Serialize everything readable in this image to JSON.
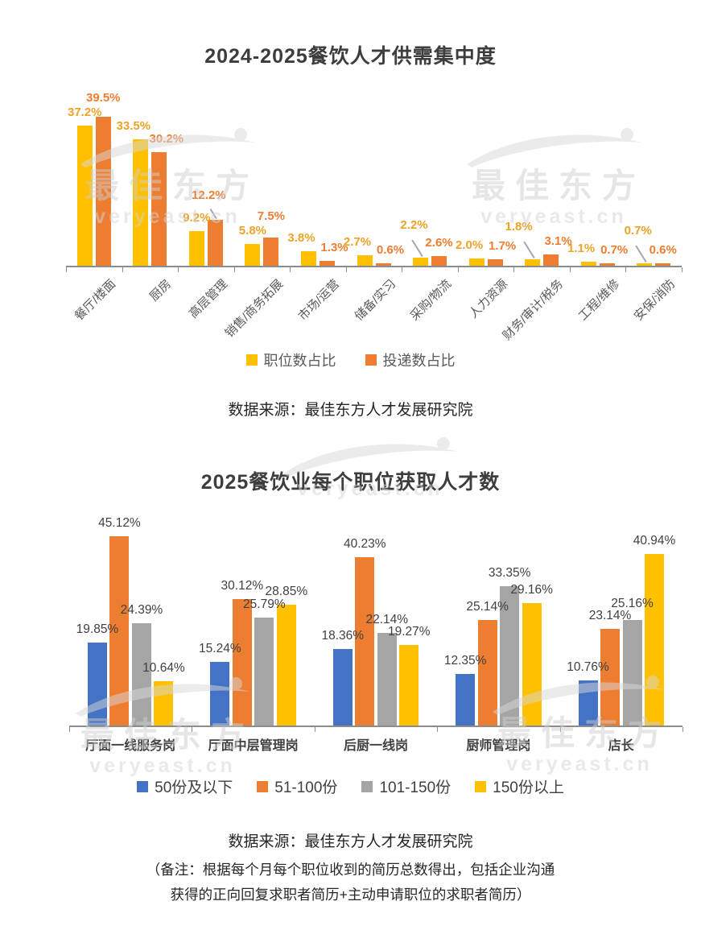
{
  "watermark": {
    "brand": "最佳东方",
    "url": "veryeast.cn"
  },
  "chart1": {
    "source": "数据来源：最佳东方人才发展研究院",
    "chart_data": {
      "type": "bar",
      "title": "2024-2025餐饮人才供需集中度",
      "categories": [
        "餐厅/楼面",
        "厨房",
        "高层管理",
        "销售/商务拓展",
        "市场/运营",
        "储备/实习",
        "采购/物流",
        "人力资源",
        "财务/审计/税务",
        "工程/维修",
        "安保/消防"
      ],
      "series": [
        {
          "name": "职位数占比",
          "color": "#FFC000",
          "label_color": "#EDA228",
          "values": [
            37.2,
            33.5,
            9.2,
            5.8,
            3.8,
            2.7,
            2.2,
            2.0,
            1.8,
            1.1,
            0.7
          ]
        },
        {
          "name": "投递数占比",
          "color": "#ED7D31",
          "label_color": "#ED7D31",
          "values": [
            39.5,
            30.2,
            12.2,
            7.5,
            1.3,
            0.6,
            2.6,
            1.7,
            3.1,
            0.7,
            0.6
          ]
        }
      ],
      "unit": "%",
      "value_format": "0.0%",
      "ylim": [
        0,
        42
      ],
      "grid": false,
      "legend_position": "bottom",
      "callouts": [
        [
          1,
          2
        ],
        [
          0,
          6
        ],
        [
          0,
          8
        ],
        [
          0,
          10
        ]
      ]
    }
  },
  "chart2": {
    "source": "数据来源：最佳东方人才发展研究院",
    "note_line1": "（备注：根据每个月每个职位收到的简历总数得出，包括企业沟通",
    "note_line2": "获得的正向回复求职者简历+主动申请职位的求职者简历）",
    "chart_data": {
      "type": "bar",
      "title": "2025餐饮业每个职位获取人才数",
      "categories": [
        "厅面一线服务岗",
        "厅面中层管理岗",
        "后厨一线岗",
        "厨师管理岗",
        "店长"
      ],
      "series": [
        {
          "name": "50份及以下",
          "color": "#4472C4",
          "values": [
            19.85,
            15.24,
            18.36,
            12.35,
            10.76
          ]
        },
        {
          "name": "51-100份",
          "color": "#ED7D31",
          "values": [
            45.12,
            30.12,
            40.23,
            25.14,
            23.14
          ]
        },
        {
          "name": "101-150份",
          "color": "#A5A5A5",
          "values": [
            24.39,
            25.79,
            22.14,
            33.35,
            25.16
          ]
        },
        {
          "name": "150份以上",
          "color": "#FFC000",
          "values": [
            10.64,
            28.85,
            19.27,
            29.16,
            40.94
          ]
        }
      ],
      "unit": "%",
      "value_format": "0.00%",
      "ylim": [
        0,
        50
      ],
      "grid": false,
      "legend_position": "bottom"
    }
  }
}
